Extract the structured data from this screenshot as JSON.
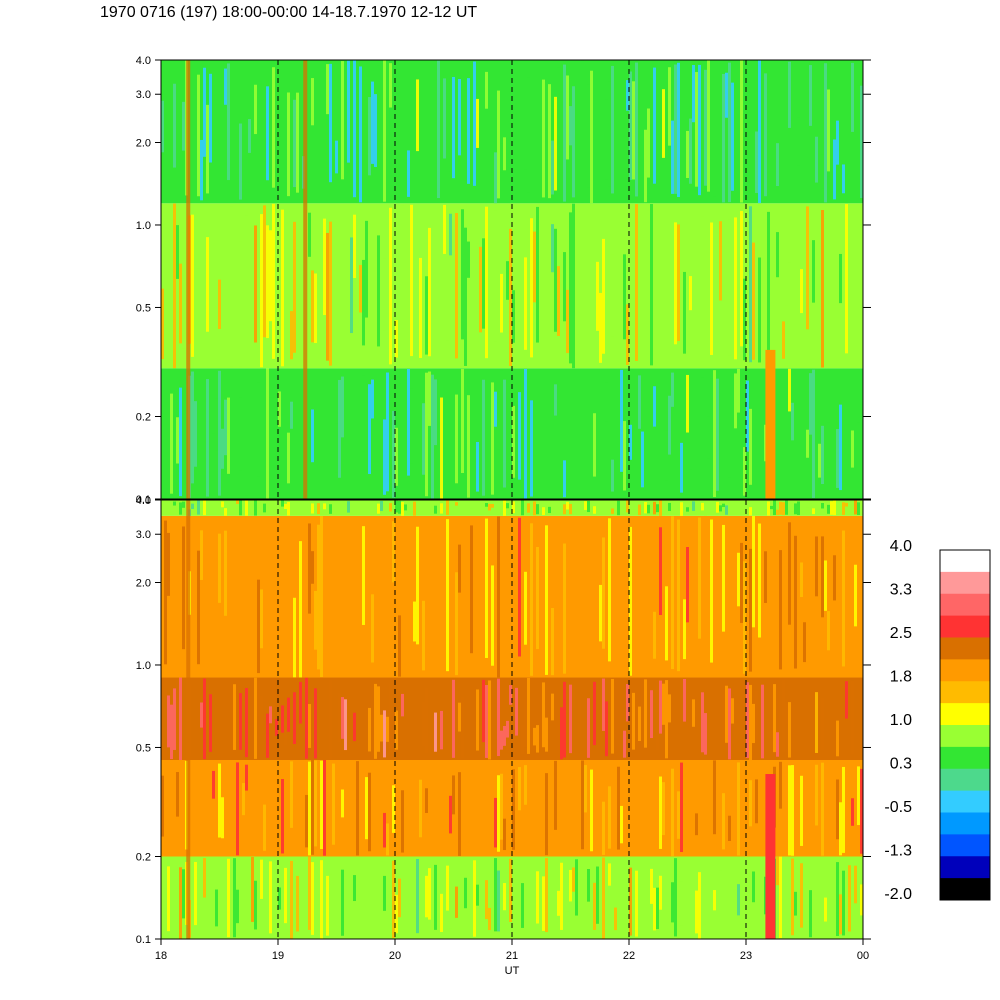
{
  "title": "1970 0716 (197) 18:00-00:00 14-18.7.1970  12-12 UT",
  "chart_data": {
    "type": "heatmap",
    "title": "1970 0716 (197) 18:00-00:00 14-18.7.1970  12-12 UT",
    "xlabel": "UT",
    "x_ticks": [
      "18",
      "19",
      "20",
      "21",
      "22",
      "23",
      "00"
    ],
    "x_range": [
      18,
      24
    ],
    "vertical_dashed_lines_at": [
      19,
      20,
      21,
      22,
      23
    ],
    "panels": [
      {
        "name": "top",
        "ylabel": "",
        "y_scale": "log",
        "y_range": [
          0.1,
          4.0
        ],
        "y_ticks": [
          "0.1",
          "0.2",
          "0.5",
          "1.0",
          "2.0",
          "3.0",
          "4.0"
        ],
        "dominant_levels": [
          "0.3",
          "1.0"
        ],
        "description_bands": [
          {
            "y_from": 0.1,
            "y_to": 0.3,
            "level": 0.3
          },
          {
            "y_from": 0.3,
            "y_to": 1.2,
            "level": 1.0
          },
          {
            "y_from": 1.2,
            "y_to": 4.0,
            "level": 0.3
          }
        ],
        "bursts": [
          {
            "x": 18.25,
            "level": 2.5
          },
          {
            "x": 19.25,
            "level": 2.5
          },
          {
            "x": 23.2,
            "y_from": 0.1,
            "y_to": 0.35,
            "level": 1.8
          }
        ]
      },
      {
        "name": "bottom",
        "ylabel": "",
        "y_scale": "log",
        "y_range": [
          0.1,
          4.0
        ],
        "y_ticks": [
          "0.1",
          "0.2",
          "0.5",
          "1.0",
          "2.0",
          "3.0",
          "4.0"
        ],
        "dominant_levels": [
          "1.8",
          "2.5"
        ],
        "description_bands": [
          {
            "y_from": 0.1,
            "y_to": 0.2,
            "level": 1.0
          },
          {
            "y_from": 0.2,
            "y_to": 0.45,
            "level": 1.8
          },
          {
            "y_from": 0.45,
            "y_to": 0.9,
            "level": 2.5
          },
          {
            "y_from": 0.9,
            "y_to": 3.5,
            "level": 1.8
          },
          {
            "y_from": 3.5,
            "y_to": 4.0,
            "level": 1.0
          }
        ],
        "bursts": [
          {
            "x": 18.25,
            "level": 2.5
          },
          {
            "x": 23.2,
            "y_from": 0.1,
            "y_to": 0.4,
            "level": 2.8
          }
        ]
      }
    ],
    "colorbar": {
      "labels": [
        "4.0",
        "3.3",
        "2.5",
        "1.8",
        "1.0",
        "0.3",
        "-0.5",
        "-1.3",
        "-2.0"
      ],
      "min": -2.0,
      "max": 4.0,
      "colors_top_to_bottom": [
        "#ffffff",
        "#ff9999",
        "#ff6666",
        "#ff3333",
        "#d97000",
        "#ff9a00",
        "#ffbb00",
        "#ffff00",
        "#99ff33",
        "#33e633",
        "#4dd98c",
        "#33ccff",
        "#0099ff",
        "#0055ff",
        "#0000bb",
        "#000000"
      ]
    }
  }
}
